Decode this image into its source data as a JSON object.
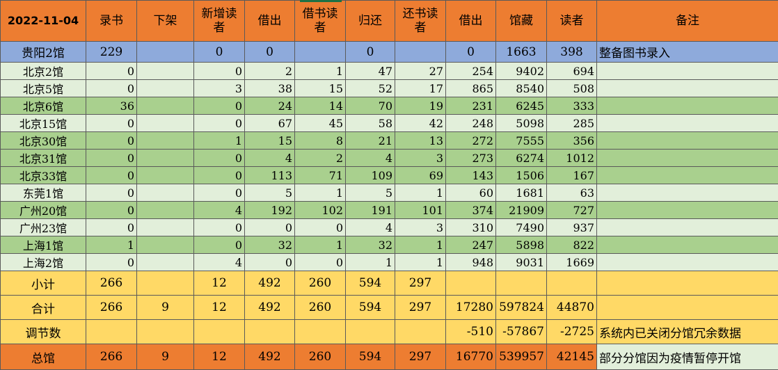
{
  "header": {
    "date": "2022-11-04",
    "columns": [
      "录书",
      "下架",
      "新增读者",
      "借出",
      "借书读者",
      "归还",
      "还书读者",
      "借出",
      "馆藏",
      "读者",
      "备注"
    ]
  },
  "guiyang": {
    "name": "贵阳2馆",
    "values": [
      "229",
      "",
      "0",
      "0",
      "",
      "0",
      "",
      "0",
      "1663",
      "398"
    ],
    "note": "整备图书录入"
  },
  "rows": [
    {
      "name": "北京2馆",
      "values": [
        "0",
        "",
        "0",
        "2",
        "1",
        "47",
        "27",
        "254",
        "9402",
        "694"
      ],
      "note": ""
    },
    {
      "name": "北京5馆",
      "values": [
        "0",
        "",
        "3",
        "38",
        "15",
        "52",
        "17",
        "865",
        "8540",
        "508"
      ],
      "note": ""
    },
    {
      "name": "北京6馆",
      "values": [
        "36",
        "",
        "0",
        "24",
        "14",
        "70",
        "19",
        "231",
        "6245",
        "333"
      ],
      "note": ""
    },
    {
      "name": "北京15馆",
      "values": [
        "0",
        "",
        "0",
        "67",
        "45",
        "58",
        "42",
        "248",
        "5098",
        "285"
      ],
      "note": ""
    },
    {
      "name": "北京30馆",
      "values": [
        "0",
        "",
        "1",
        "15",
        "8",
        "21",
        "13",
        "272",
        "7555",
        "356"
      ],
      "note": ""
    },
    {
      "name": "北京31馆",
      "values": [
        "0",
        "",
        "0",
        "4",
        "2",
        "4",
        "3",
        "273",
        "6274",
        "1012"
      ],
      "note": ""
    },
    {
      "name": "北京33馆",
      "values": [
        "0",
        "",
        "0",
        "113",
        "71",
        "109",
        "69",
        "143",
        "1506",
        "167"
      ],
      "note": ""
    },
    {
      "name": "东莞1馆",
      "values": [
        "0",
        "",
        "0",
        "5",
        "1",
        "5",
        "1",
        "60",
        "1681",
        "63"
      ],
      "note": ""
    },
    {
      "name": "广州20馆",
      "values": [
        "0",
        "",
        "4",
        "192",
        "102",
        "191",
        "101",
        "374",
        "21909",
        "727"
      ],
      "note": ""
    },
    {
      "name": "广州23馆",
      "values": [
        "0",
        "",
        "0",
        "0",
        "0",
        "4",
        "3",
        "310",
        "7490",
        "937"
      ],
      "note": ""
    },
    {
      "name": "上海1馆",
      "values": [
        "1",
        "",
        "0",
        "32",
        "1",
        "32",
        "1",
        "247",
        "5898",
        "822"
      ],
      "note": ""
    },
    {
      "name": "上海2馆",
      "values": [
        "0",
        "",
        "4",
        "0",
        "0",
        "1",
        "1",
        "948",
        "9031",
        "1669"
      ],
      "note": ""
    }
  ],
  "subtotal": {
    "label": "小计",
    "values": [
      "266",
      "",
      "12",
      "492",
      "260",
      "594",
      "297",
      "",
      "",
      ""
    ],
    "note": ""
  },
  "total": {
    "label": "合计",
    "values": [
      "266",
      "9",
      "12",
      "492",
      "260",
      "594",
      "297",
      "17280",
      "597824",
      "44870"
    ],
    "note": ""
  },
  "adjust": {
    "label": "调节数",
    "values": [
      "",
      "",
      "",
      "",
      "",
      "",
      "",
      "-510",
      "-57867",
      "-2725"
    ],
    "note": "系统内已关闭分馆冗余数据"
  },
  "grand": {
    "label": "总馆",
    "values": [
      "266",
      "9",
      "12",
      "492",
      "260",
      "594",
      "297",
      "16770",
      "539957",
      "42145"
    ],
    "note": "部分分馆因为疫情暂停开馆"
  }
}
